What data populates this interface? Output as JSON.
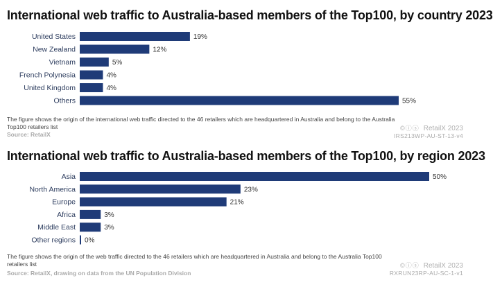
{
  "chart_data": [
    {
      "type": "bar",
      "orientation": "horizontal",
      "title": "International web traffic to Australia-based members of the Top100, by country 2023",
      "categories": [
        "United States",
        "New Zealand",
        "Vietnam",
        "French Polynesia",
        "United Kingdom",
        "Others"
      ],
      "values": [
        19,
        12,
        5,
        4,
        4,
        55
      ],
      "value_labels": [
        "19%",
        "12%",
        "5%",
        "4%",
        "4%",
        "55%"
      ],
      "unit": "%",
      "xlim": [
        0,
        55
      ],
      "grid": false,
      "bar_color": "#1f3b78",
      "note": "The figure shows the origin of the international web traffic directed to the 46 retailers which are headquartered in Australia and belong to the Australia Top100 retailers list",
      "source": "Source: RetailX",
      "brand": "RetailX 2023",
      "brand_cc": "©ⓘⓢ",
      "code": "IRS213WP-AU-ST-13-v4"
    },
    {
      "type": "bar",
      "orientation": "horizontal",
      "title": "International web traffic to Australia-based members of the Top100, by region 2023",
      "categories": [
        "Asia",
        "North America",
        "Europe",
        "Africa",
        "Middle East",
        "Other regions"
      ],
      "values": [
        50,
        23,
        21,
        3,
        3,
        0
      ],
      "value_labels": [
        "50%",
        "23%",
        "21%",
        "3%",
        "3%",
        "0%"
      ],
      "unit": "%",
      "xlim": [
        0,
        50
      ],
      "grid": false,
      "bar_color": "#1f3b78",
      "note": "The figure shows the origin of the web traffic directed to the 46 retailers which are headquartered in Australia and belong to the Australia Top100 retailers list",
      "source": "Source: RetailX, drawing on data from the UN Population Division",
      "brand": "RetailX 2023",
      "brand_cc": "©ⓘⓢ",
      "code": "RXRUN23RP-AU-SC-1-v1"
    }
  ]
}
